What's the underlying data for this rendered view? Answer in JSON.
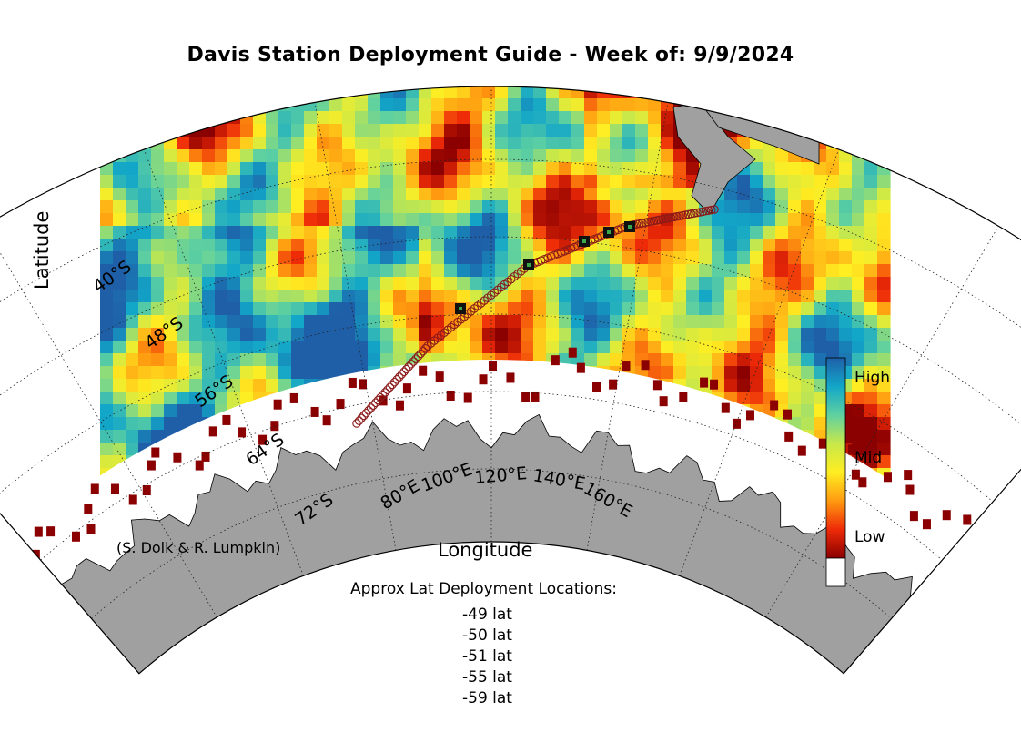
{
  "title": "Davis Station Deployment Guide - Week of: 9/9/2024",
  "axes": {
    "ylabel": "Latitude",
    "xlabel": "Longitude",
    "lat_labels": [
      "40°S",
      "48°S",
      "56°S",
      "64°S",
      "72°S"
    ],
    "lon_labels": [
      "80°E",
      "100°E",
      "120°E",
      "140°E",
      "160°E"
    ]
  },
  "credit": "(S. Dolk & R. Lumpkin)",
  "colorbar": {
    "labels": [
      "High",
      "Mid",
      "Low"
    ],
    "colors": [
      "#1f5fa8",
      "#12a6c8",
      "#5fd0a0",
      "#c8e84a",
      "#ffee22",
      "#ff9a10",
      "#ee2a08",
      "#8b0000"
    ],
    "no_data_color": "#ffffff"
  },
  "deployment": {
    "heading": "Approx Lat Deployment Locations:",
    "latitudes": [
      "-49 lat",
      "-50 lat",
      "-51 lat",
      "-55 lat",
      "-59 lat"
    ]
  },
  "map": {
    "land_color": "#a0a0a0",
    "ice_color": "#ffffff",
    "track_color": "#8b1a1a",
    "deployment_marker_color": "#111111"
  }
}
